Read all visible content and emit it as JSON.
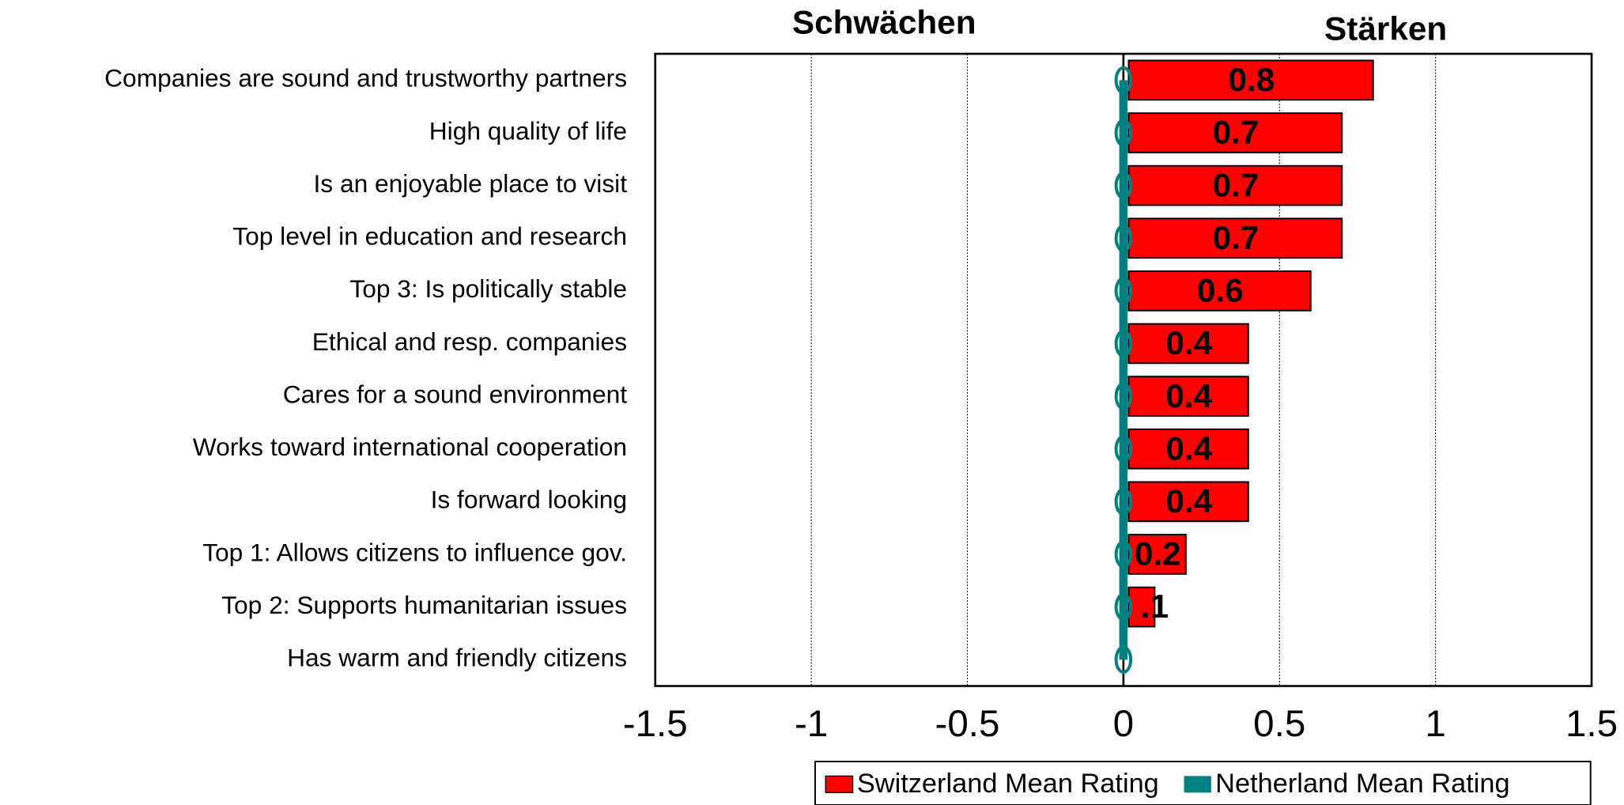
{
  "chart_data": {
    "type": "bar",
    "orientation": "horizontal",
    "annotations": [
      "Schwächen",
      "Stärken"
    ],
    "categories": [
      "Companies are sound and trustworthy partners",
      "High quality of life",
      "Is an enjoyable place to visit",
      "Top level in education and research",
      "Top 3: Is politically stable",
      "Ethical and resp. companies",
      "Cares for a sound environment",
      "Works toward international cooperation",
      "Is forward looking",
      "Top 1: Allows citizens to influence gov.",
      "Top 2: Supports humanitarian issues",
      "Has warm and friendly citizens"
    ],
    "series": [
      {
        "name": "Switzerland Mean Rating",
        "color": "#ff0000",
        "type": "bar",
        "values": [
          0.8,
          0.7,
          0.7,
          0.7,
          0.6,
          0.4,
          0.4,
          0.4,
          0.4,
          0.2,
          0.1,
          0
        ],
        "value_labels": [
          "0.8",
          "0.7",
          "0.7",
          "0.7",
          "0.6",
          "0.4",
          "0.4",
          "0.4",
          "0.4",
          "0.2",
          ".1",
          null
        ]
      },
      {
        "name": "Netherland Mean Rating",
        "color": "#008080",
        "type": "line",
        "values": [
          0,
          0,
          0,
          0,
          0,
          0,
          0,
          0,
          0,
          0,
          0,
          0
        ]
      }
    ],
    "xlim": [
      -1.5,
      1.5
    ],
    "xticks": [
      -1.5,
      -1,
      -0.5,
      0,
      0.5,
      1,
      1.5
    ],
    "grid": true,
    "legend": "bottom"
  }
}
